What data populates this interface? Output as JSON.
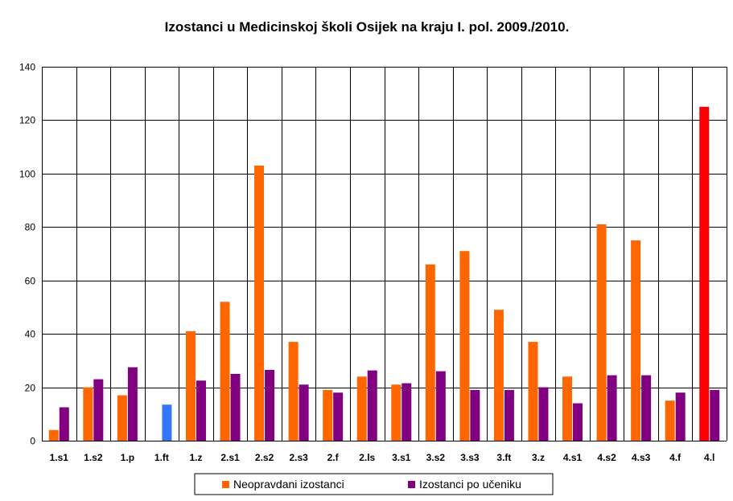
{
  "chart_data": {
    "type": "bar",
    "title": "Izostanci u Medicinskoj školi Osijek na kraju I. pol. 2009./2010.",
    "xlabel": "",
    "ylabel": "",
    "ylim": [
      0,
      140
    ],
    "yticks": [
      0,
      20,
      40,
      60,
      80,
      100,
      120,
      140
    ],
    "grid": true,
    "legend_position": "bottom",
    "categories": [
      "1.s1",
      "1.s2",
      "1.p",
      "1.ft",
      "1.z",
      "2.s1",
      "2.s2",
      "2.s3",
      "2.f",
      "2.ls",
      "3.s1",
      "3.s2",
      "3.s3",
      "3.ft",
      "3.z",
      "4.s1",
      "4.s2",
      "4.s3",
      "4.f",
      "4.l"
    ],
    "series": [
      {
        "name": "Neopravdani izostanci",
        "color": "#ff6600",
        "values": [
          4,
          20,
          17,
          0,
          41,
          52,
          103,
          37,
          19,
          24,
          21,
          66,
          71,
          49,
          37,
          24,
          81,
          75,
          15,
          125
        ]
      },
      {
        "name": "Izostanci po učeniku",
        "color": "#800080",
        "values": [
          12.5,
          23,
          27.5,
          13.5,
          22.5,
          25,
          26.5,
          21,
          18,
          26.3,
          21.5,
          26,
          19,
          19,
          20,
          14,
          24.5,
          24.5,
          18,
          19
        ]
      }
    ],
    "highlights": [
      {
        "category": "1.ft",
        "series": "Izostanci po učeniku",
        "color": "#3377ff"
      },
      {
        "category": "4.l",
        "series": "Neopravdani izostanci",
        "color": "#ff0000"
      }
    ]
  }
}
